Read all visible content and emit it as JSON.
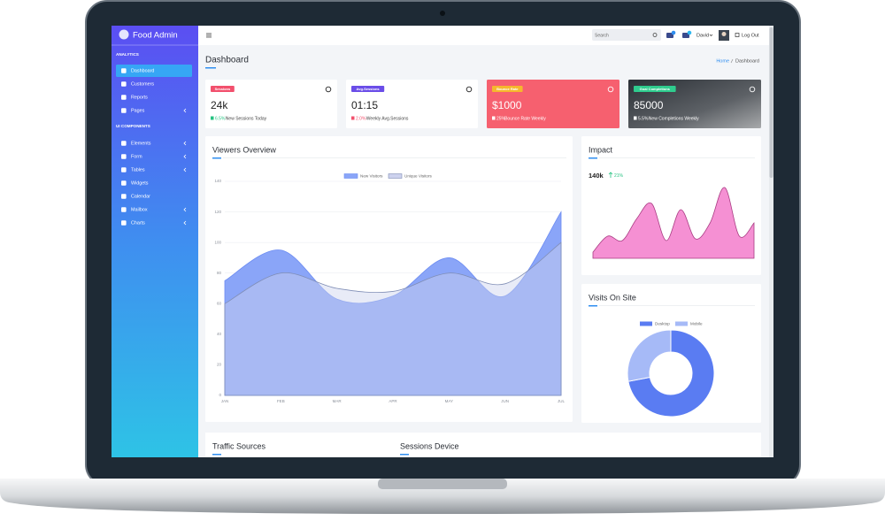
{
  "brand": "Food Admin",
  "sidebar": {
    "sections": [
      {
        "title": "ANALYTICS",
        "items": [
          "Dashboard",
          "Customers",
          "Reports",
          "Pages"
        ]
      },
      {
        "title": "UI COMPONENTS",
        "items": [
          "Elements",
          "Form",
          "Tables",
          "Widgets",
          "Calendar",
          "Mailbox",
          "Charts"
        ]
      }
    ]
  },
  "topbar": {
    "search_placeholder": "Search",
    "user": "David",
    "logout": "Log Out"
  },
  "page": {
    "title": "Dashboard",
    "breadcrumb": [
      "Home",
      "Dashboard"
    ]
  },
  "stats": [
    {
      "badge": "Sessions",
      "value": "24k",
      "change": "6.5%",
      "note": "New Sessions Today"
    },
    {
      "badge": "Avg.Sessions",
      "value": "01:15",
      "change": "2.0%",
      "note": "Weekly Avg.Sessions"
    },
    {
      "badge": "Bounce Rate",
      "value": "$1000",
      "change": "25%",
      "note": "Bounce Rate Weekly"
    },
    {
      "badge": "Goal Completions",
      "value": "85000",
      "change": "5.5%",
      "note": "New Completions Weekly"
    }
  ],
  "chart_data": [
    {
      "type": "area",
      "title": "Viewers Overview",
      "categories": [
        "JAN",
        "FEB",
        "MAR",
        "APR",
        "MAY",
        "JUN",
        "JUL"
      ],
      "series": [
        {
          "name": "New Visitors",
          "color": "#8aa5f8",
          "values": [
            75,
            95,
            63,
            65,
            90,
            65,
            120
          ]
        },
        {
          "name": "Unique Visitors",
          "color": "#cdd2ee",
          "values": [
            60,
            80,
            70,
            68,
            80,
            73,
            100
          ]
        }
      ],
      "ylim": [
        0,
        140
      ],
      "yticks": [
        0,
        20,
        40,
        60,
        80,
        100,
        120,
        140
      ],
      "grid": true,
      "legend": "top"
    },
    {
      "type": "spark",
      "title": "Impact",
      "stat": "140k",
      "change": "21%",
      "values": [
        7,
        25,
        20,
        45,
        62,
        20,
        55,
        22,
        40,
        80,
        25,
        40
      ],
      "color": "#f590d3"
    },
    {
      "type": "doughnut",
      "title": "Visits On Site",
      "categories": [
        "Desktop",
        "Mobile"
      ],
      "values": [
        72,
        28
      ],
      "colors": [
        "#5a7cf2",
        "#a6baf7"
      ],
      "legend": "top"
    }
  ],
  "panels": [
    "Traffic Sources",
    "Sessions Device"
  ]
}
